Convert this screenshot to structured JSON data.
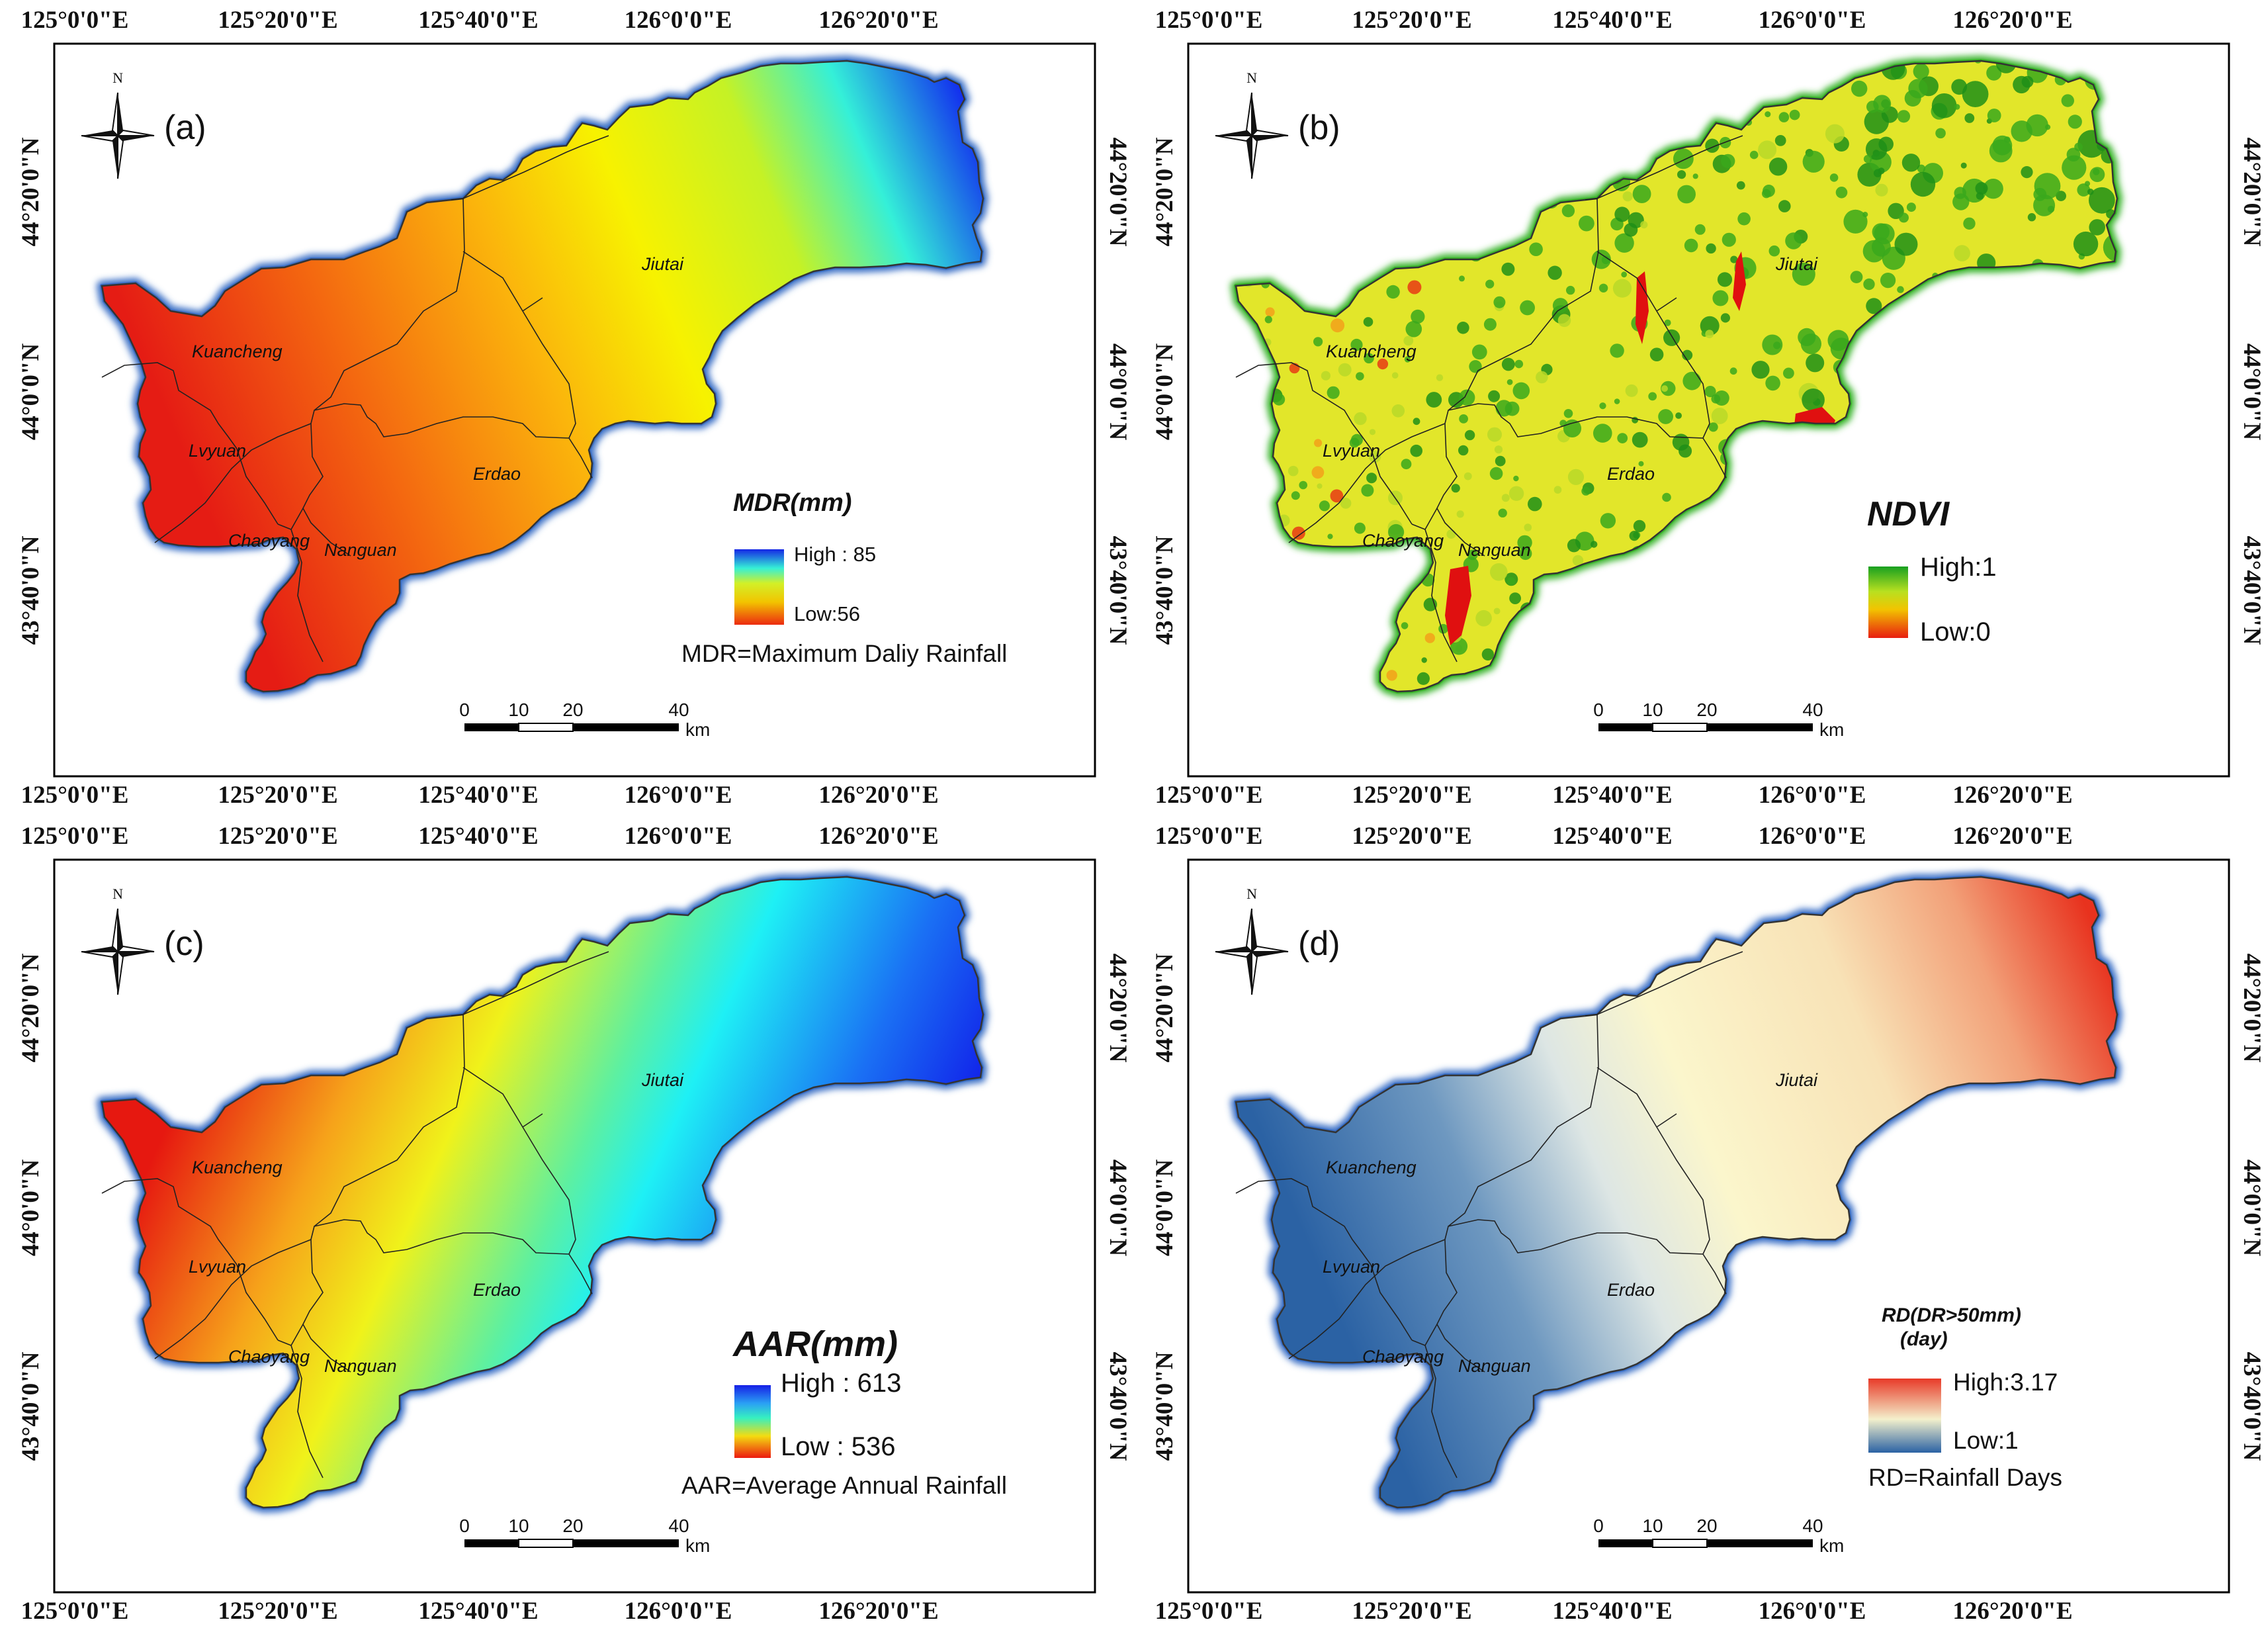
{
  "coordinates": {
    "longitudes": [
      "125°0'0\"E",
      "125°20'0\"E",
      "125°40'0\"E",
      "126°0'0\"E",
      "126°20'0\"E"
    ],
    "latitudes": [
      "44°20'0\"N",
      "44°0'0\"N",
      "43°40'0\"N"
    ]
  },
  "districts": [
    "Kuancheng",
    "Lvyuan",
    "Chaoyang",
    "Nanguan",
    "Erdao",
    "Jiutai"
  ],
  "north_arrow": "N",
  "scale_bar": {
    "ticks": [
      "0",
      "10",
      "20",
      "40"
    ],
    "unit": "km"
  },
  "panels": {
    "a": {
      "label": "(a)",
      "legend_title": "MDR(mm)",
      "legend_high": "High : 85",
      "legend_low": "Low:56",
      "note": "MDR=Maximum Daliy Rainfall"
    },
    "b": {
      "label": "(b)",
      "legend_title": "NDVI",
      "legend_high": "High:1",
      "legend_low": "Low:0",
      "note": ""
    },
    "c": {
      "label": "(c)",
      "legend_title": "AAR(mm)",
      "legend_high": "High : 613",
      "legend_low": "Low : 536",
      "note": "AAR=Average Annual Rainfall"
    },
    "d": {
      "label": "(d)",
      "legend_title": "RD(DR>50mm)",
      "legend_title_2": "(day)",
      "legend_high": "High:3.17",
      "legend_low": "Low:1",
      "note": "RD=Rainfall Days"
    }
  },
  "colors": {
    "boundary_glow_blue": "#3a6fc6",
    "boundary_glow_green": "#39b42a",
    "frame": "#000000"
  }
}
